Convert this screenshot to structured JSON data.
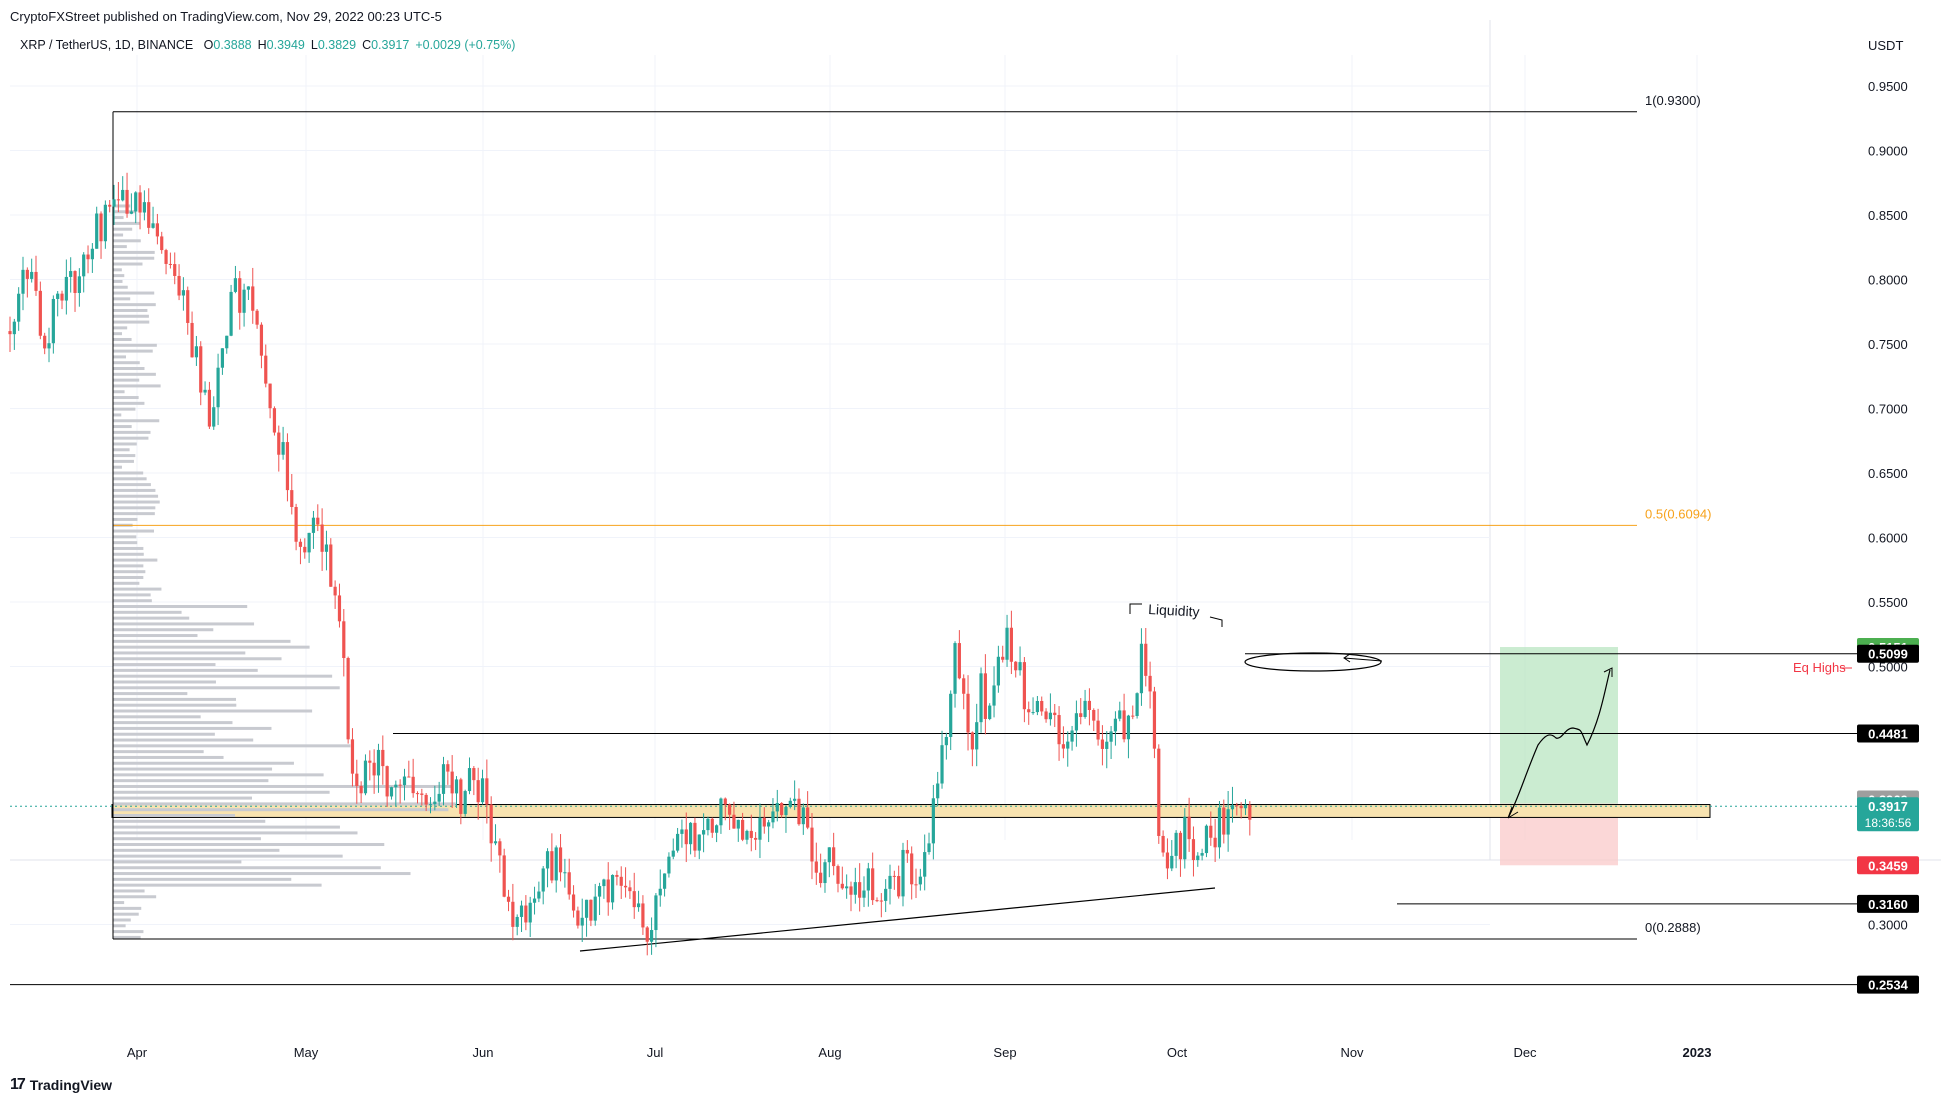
{
  "header": {
    "published": "CryptoFXStreet published on TradingView.com, Nov 29, 2022 00:23 UTC-5",
    "symbol": "XRP / TetherUS, 1D, BINANCE",
    "ohlc": [
      {
        "k": "O",
        "v": "0.3888"
      },
      {
        "k": "H",
        "v": "0.3949"
      },
      {
        "k": "L",
        "v": "0.3829"
      },
      {
        "k": "C",
        "v": "0.3917"
      },
      {
        "k": "",
        "v": "+0.0029 (+0.75%)"
      }
    ]
  },
  "footer": {
    "logo_text": "TradingView",
    "logo_mark": "17"
  },
  "colors": {
    "up": "#26a69a",
    "down": "#ef5350",
    "grid": "#f0f3fa",
    "fib": "#f7a21b",
    "zone": "#f8e3b0",
    "target": "#b9e5c1",
    "stop": "#f9c9c9",
    "volume": "#c8cad0"
  },
  "chart_data": {
    "type": "candlestick",
    "title": "XRP / TetherUS, 1D, BINANCE",
    "ylabel": "USDT",
    "ylim": [
      0.22,
      0.98
    ],
    "x_ticks": [
      "Apr",
      "May",
      "Jun",
      "Jul",
      "Aug",
      "Sep",
      "Oct",
      "Nov",
      "Dec",
      "2023"
    ],
    "y_ticks": [
      "0.9500",
      "0.9000",
      "0.8500",
      "0.8000",
      "0.7500",
      "0.7000",
      "0.6500",
      "0.6000",
      "0.5500",
      "0.5000",
      "0.3000"
    ],
    "price_tags": [
      {
        "value": 0.5151,
        "label": "0.5151",
        "bg": "#4caf50",
        "fg": "#ffffff"
      },
      {
        "value": 0.5099,
        "label": "0.5099",
        "bg": "#000000",
        "fg": "#ffffff"
      },
      {
        "value": 0.4481,
        "label": "0.4481",
        "bg": "#000000",
        "fg": "#ffffff"
      },
      {
        "value": 0.3969,
        "label": "0.3969",
        "bg": "#9e9e9e",
        "fg": "#ffffff"
      },
      {
        "value": 0.3917,
        "label": "0.3917",
        "sub": "18:36:56",
        "bg": "#26a69a",
        "fg": "#ffffff"
      },
      {
        "value": 0.3459,
        "label": "0.3459",
        "bg": "#f23645",
        "fg": "#ffffff"
      },
      {
        "value": 0.316,
        "label": "0.3160",
        "bg": "#000000",
        "fg": "#ffffff"
      },
      {
        "value": 0.2534,
        "label": "0.2534",
        "bg": "#000000",
        "fg": "#ffffff"
      }
    ],
    "fib_levels": [
      {
        "label": "1(0.9300)",
        "value": 0.93,
        "color": "#000000"
      },
      {
        "label": "0.5(0.6094)",
        "value": 0.6094,
        "color": "#f7a21b"
      },
      {
        "label": "0(0.2888)",
        "value": 0.2888,
        "color": "#000000"
      }
    ],
    "annotations": {
      "liquidity": "Liquidity",
      "eq_highs": "Eq Highs"
    },
    "horizontal_lines": [
      0.5099,
      0.4481,
      0.316,
      0.2534
    ],
    "support_zone": [
      0.383,
      0.393
    ],
    "current_price": 0.3917,
    "trade": {
      "entry": 0.3937,
      "target": 0.5151,
      "stop": 0.3459
    },
    "candle_points": [
      [
        0,
        0.76
      ],
      [
        4,
        0.81
      ],
      [
        8,
        0.75
      ],
      [
        12,
        0.79
      ],
      [
        16,
        0.8
      ],
      [
        20,
        0.84
      ],
      [
        24,
        0.85
      ],
      [
        28,
        0.86
      ],
      [
        34,
        0.83
      ],
      [
        38,
        0.81
      ],
      [
        41,
        0.77
      ],
      [
        44,
        0.72
      ],
      [
        46,
        0.69
      ],
      [
        49,
        0.75
      ],
      [
        52,
        0.79
      ],
      [
        55,
        0.78
      ],
      [
        58,
        0.74
      ],
      [
        60,
        0.7
      ],
      [
        63,
        0.66
      ],
      [
        65,
        0.61
      ],
      [
        68,
        0.58
      ],
      [
        70,
        0.63
      ],
      [
        72,
        0.6
      ],
      [
        75,
        0.55
      ],
      [
        77,
        0.51
      ],
      [
        78,
        0.44
      ],
      [
        80,
        0.4
      ],
      [
        83,
        0.43
      ],
      [
        86,
        0.42
      ],
      [
        89,
        0.4
      ],
      [
        92,
        0.41
      ],
      [
        95,
        0.39
      ],
      [
        98,
        0.4
      ],
      [
        101,
        0.42
      ],
      [
        104,
        0.4
      ],
      [
        107,
        0.41
      ],
      [
        109,
        0.4
      ],
      [
        111,
        0.37
      ],
      [
        114,
        0.33
      ],
      [
        117,
        0.3
      ],
      [
        120,
        0.32
      ],
      [
        123,
        0.34
      ],
      [
        126,
        0.35
      ],
      [
        129,
        0.32
      ],
      [
        132,
        0.31
      ],
      [
        136,
        0.32
      ],
      [
        140,
        0.33
      ],
      [
        144,
        0.31
      ],
      [
        147,
        0.3
      ],
      [
        150,
        0.33
      ],
      [
        153,
        0.36
      ],
      [
        156,
        0.37
      ],
      [
        159,
        0.36
      ],
      [
        162,
        0.38
      ],
      [
        165,
        0.39
      ],
      [
        168,
        0.38
      ],
      [
        171,
        0.37
      ],
      [
        174,
        0.39
      ],
      [
        177,
        0.38
      ],
      [
        180,
        0.39
      ],
      [
        183,
        0.38
      ],
      [
        186,
        0.34
      ],
      [
        189,
        0.35
      ],
      [
        192,
        0.34
      ],
      [
        195,
        0.33
      ],
      [
        198,
        0.33
      ],
      [
        201,
        0.32
      ],
      [
        204,
        0.33
      ],
      [
        207,
        0.35
      ],
      [
        210,
        0.33
      ],
      [
        212,
        0.37
      ],
      [
        214,
        0.4
      ],
      [
        216,
        0.46
      ],
      [
        218,
        0.51
      ],
      [
        220,
        0.48
      ],
      [
        222,
        0.44
      ],
      [
        224,
        0.48
      ],
      [
        226,
        0.46
      ],
      [
        228,
        0.5
      ],
      [
        230,
        0.52
      ],
      [
        232,
        0.5
      ],
      [
        234,
        0.48
      ],
      [
        237,
        0.47
      ],
      [
        240,
        0.46
      ],
      [
        243,
        0.44
      ],
      [
        246,
        0.46
      ],
      [
        249,
        0.47
      ],
      [
        252,
        0.45
      ],
      [
        255,
        0.46
      ],
      [
        258,
        0.45
      ],
      [
        261,
        0.51
      ],
      [
        263,
        0.47
      ],
      [
        265,
        0.38
      ],
      [
        267,
        0.34
      ],
      [
        269,
        0.36
      ],
      [
        271,
        0.37
      ],
      [
        274,
        0.35
      ],
      [
        277,
        0.37
      ],
      [
        280,
        0.38
      ],
      [
        282,
        0.39
      ],
      [
        284,
        0.38
      ],
      [
        286,
        0.392
      ]
    ]
  }
}
